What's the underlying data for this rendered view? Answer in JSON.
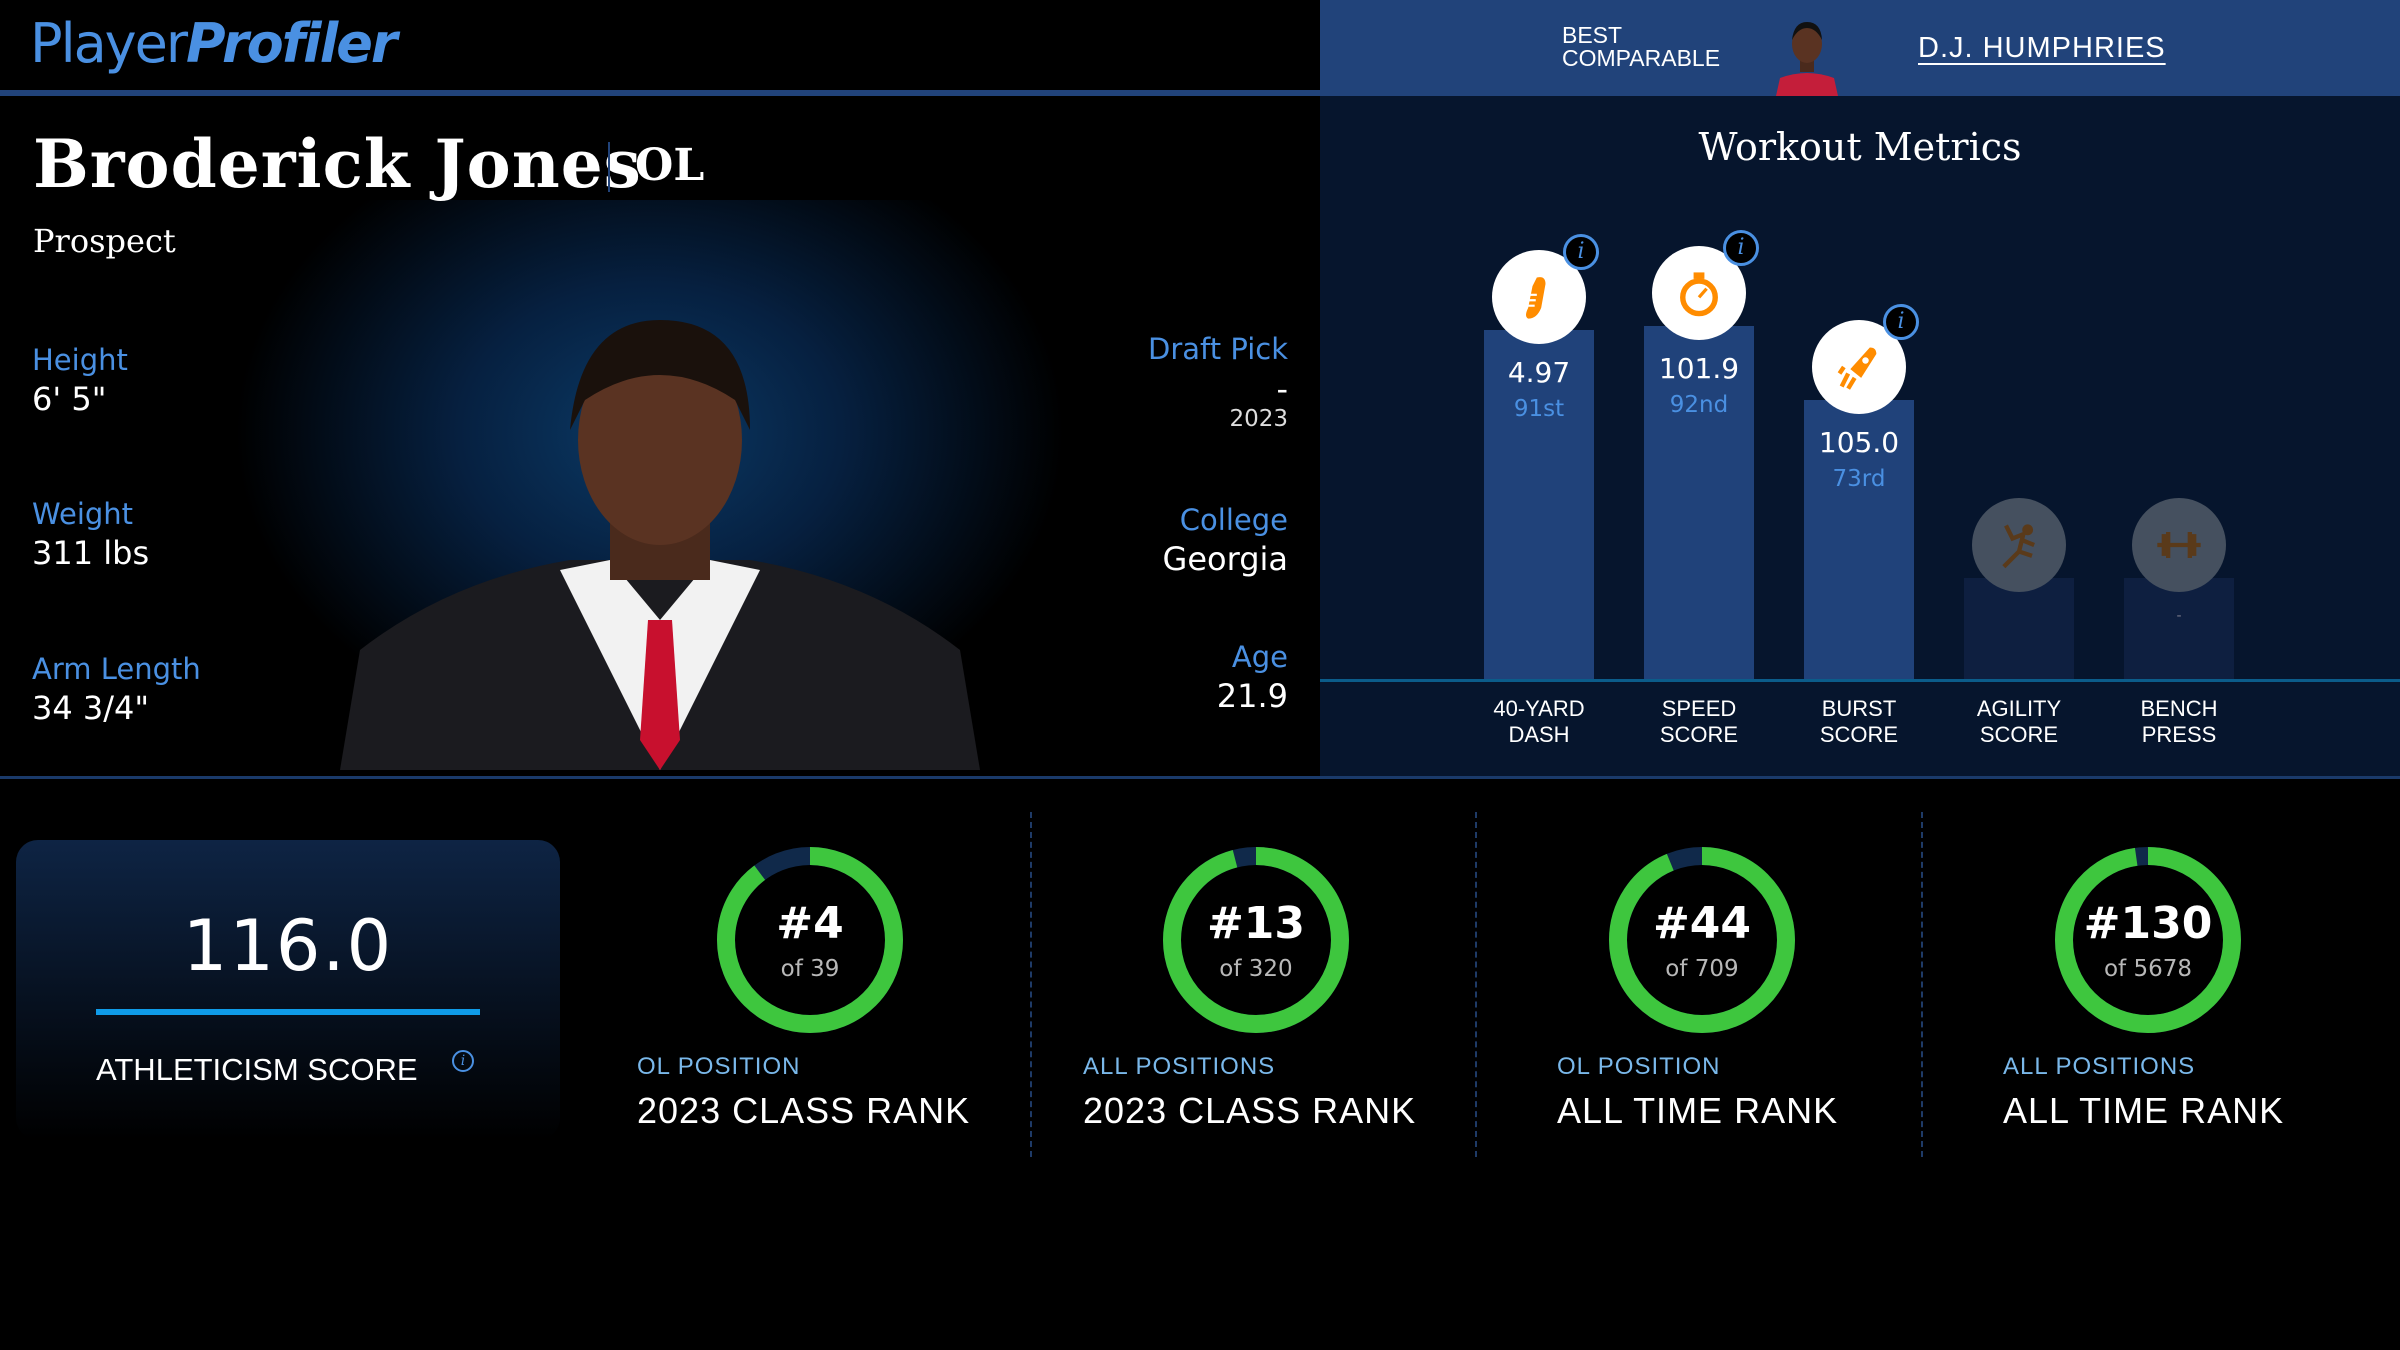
{
  "header": {
    "logo_part1": "Player",
    "logo_part2": "Profiler",
    "best_comparable_label_1": "BEST",
    "best_comparable_label_2": "COMPARABLE",
    "best_comparable_name": "D.J. HUMPHRIES"
  },
  "player": {
    "name": "Broderick Jones",
    "position": "OL",
    "status": "Prospect",
    "left_stats": [
      {
        "label": "Height",
        "value": "6' 5\""
      },
      {
        "label": "Weight",
        "value": "311 lbs"
      },
      {
        "label": "Arm Length",
        "value": "34 3/4\""
      }
    ],
    "draft": {
      "label": "Draft Pick",
      "value": "-",
      "year": "2023"
    },
    "college": {
      "label": "College",
      "value": "Georgia"
    },
    "age": {
      "label": "Age",
      "value": "21.9"
    }
  },
  "workout": {
    "title": "Workout Metrics",
    "info_glyph": "i",
    "metrics": [
      {
        "label1": "40-YARD",
        "label2": "DASH",
        "value": "4.97",
        "rank": "91st",
        "percentile": 91,
        "icon": "shoe-icon",
        "available": true
      },
      {
        "label1": "SPEED",
        "label2": "SCORE",
        "value": "101.9",
        "rank": "92nd",
        "percentile": 92,
        "icon": "stopwatch-icon",
        "available": true
      },
      {
        "label1": "BURST",
        "label2": "SCORE",
        "value": "105.0",
        "rank": "73rd",
        "percentile": 73,
        "icon": "rocket-icon",
        "available": true
      },
      {
        "label1": "AGILITY",
        "label2": "SCORE",
        "value": "",
        "rank": "",
        "percentile": null,
        "icon": "runner-icon",
        "available": false
      },
      {
        "label1": "BENCH",
        "label2": "PRESS",
        "value": "-",
        "rank": "",
        "percentile": null,
        "icon": "barbell-icon",
        "available": false
      }
    ]
  },
  "athleticism": {
    "score": "116.0",
    "label": "ATHLETICISM SCORE"
  },
  "ranks": [
    {
      "rank": "#4",
      "of": "of 39",
      "rank_num": 4,
      "total": 39,
      "sub": "OL POSITION",
      "label": "2023 CLASS RANK"
    },
    {
      "rank": "#13",
      "of": "of 320",
      "rank_num": 13,
      "total": 320,
      "sub": "ALL POSITIONS",
      "label": "2023 CLASS RANK"
    },
    {
      "rank": "#44",
      "of": "of 709",
      "rank_num": 44,
      "total": 709,
      "sub": "OL POSITION",
      "label": "ALL TIME RANK"
    },
    {
      "rank": "#130",
      "of": "of 5678",
      "rank_num": 130,
      "total": 5678,
      "sub": "ALL POSITIONS",
      "label": "ALL TIME RANK"
    }
  ],
  "colors": {
    "accent": "#4a90e2",
    "ring_green": "#3ec63e",
    "ring_track": "#10294a",
    "orange": "#ff8c00",
    "panel": "#06152d",
    "header_blue": "#21437a"
  }
}
